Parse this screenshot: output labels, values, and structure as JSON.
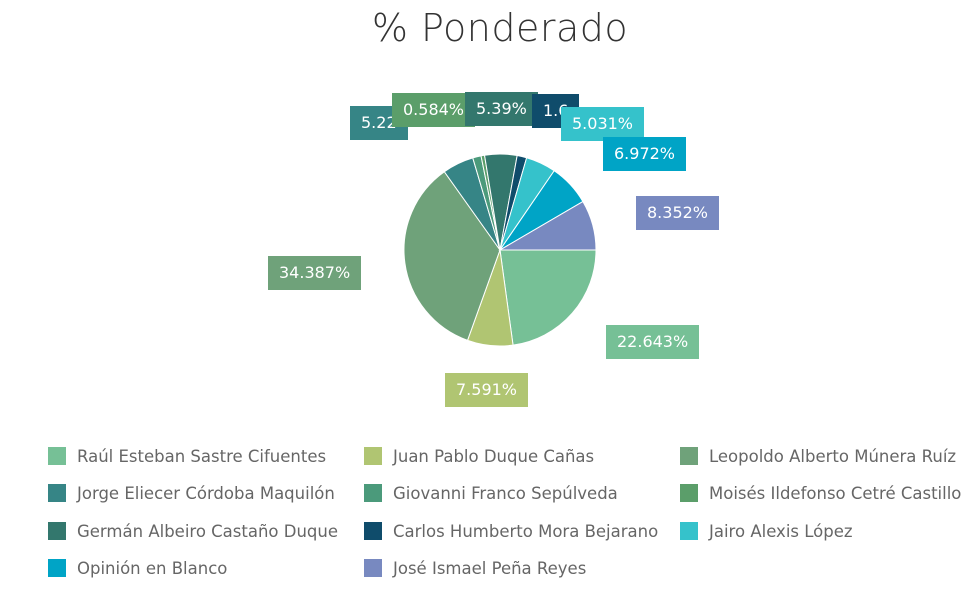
{
  "chart_data": {
    "type": "pie",
    "title": "% Ponderado",
    "slices": [
      {
        "name": "Raúl Esteban Sastre Cifuentes",
        "value": 22.643,
        "label": "22.643%",
        "color": "#76C096"
      },
      {
        "name": "Juan Pablo Duque Cañas",
        "value": 7.591,
        "label": "7.591%",
        "color": "#B0C572"
      },
      {
        "name": "Leopoldo Alberto Múnera Ruíz",
        "value": 34.387,
        "label": "34.387%",
        "color": "#6FA27A"
      },
      {
        "name": "Jorge Eliecer Córdoba Maquilón",
        "value": 5.22,
        "label": "5.22",
        "color": "#368586"
      },
      {
        "name": "Giovanni Franco Sepúlveda",
        "value": 1.4,
        "label": "",
        "color": "#4B9A7B"
      },
      {
        "name": "Moisés Ildefonso Cetré Castillo",
        "value": 0.584,
        "label": "0.584%",
        "color": "#5B9E6A"
      },
      {
        "name": "Germán Albeiro Castaño Duque",
        "value": 5.39,
        "label": "5.39%",
        "color": "#33776D"
      },
      {
        "name": "Carlos Humberto Mora Bejarano",
        "value": 1.6,
        "label": "1.6",
        "color": "#0F4C6B"
      },
      {
        "name": "Jairo Alexis López",
        "value": 5.031,
        "label": "5.031%",
        "color": "#35C2CB"
      },
      {
        "name": "Opinión en Blanco",
        "value": 6.972,
        "label": "6.972%",
        "color": "#00A4C6"
      },
      {
        "name": "José Ismael Peña Reyes",
        "value": 8.352,
        "label": "8.352%",
        "color": "#7889C0"
      }
    ],
    "legend_position": "bottom"
  }
}
